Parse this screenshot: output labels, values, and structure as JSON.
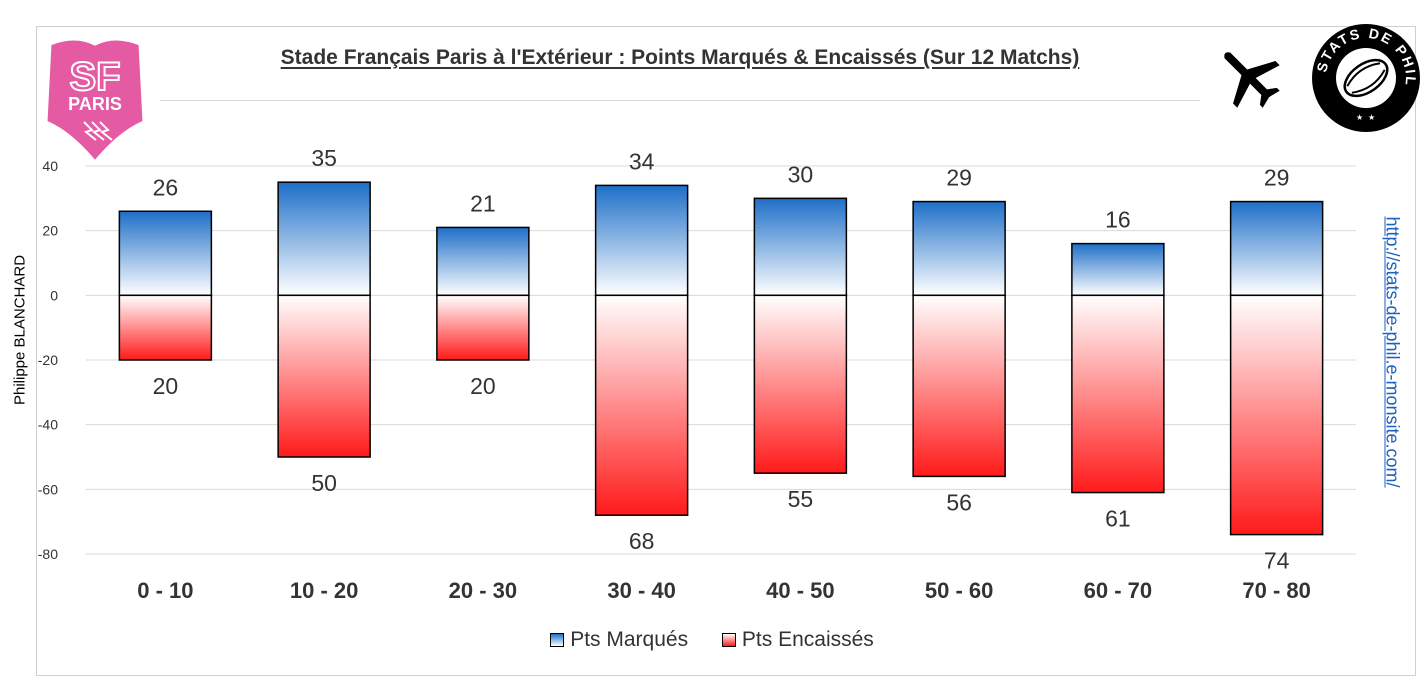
{
  "title": "Stade Français Paris à l'Extérieur : Points Marqués & Encaissés (Sur 12 Matchs)",
  "author": "Philippe BLANCHARD",
  "url": "http://stats-de-phil.e-monsite.com/",
  "logo_left": {
    "line1": "SF",
    "line2": "PARIS"
  },
  "logo_right": {
    "text": "STATS DE PHIL",
    "icon": "rugby-ball-icon"
  },
  "plane_icon": "airplane-icon",
  "colors": {
    "blue": "#1e6fc8",
    "red": "#ff1a1a",
    "logo_pink": "#e45aa3"
  },
  "chart_data": {
    "type": "bar",
    "categories": [
      "0 - 10",
      "10 - 20",
      "20 - 30",
      "30 - 40",
      "40 - 50",
      "50 - 60",
      "60 - 70",
      "70 - 80"
    ],
    "series": [
      {
        "name": "Pts Marqués",
        "values": [
          26,
          35,
          21,
          34,
          30,
          29,
          16,
          29
        ],
        "labels": [
          "26",
          "35",
          "21",
          "34",
          "30",
          "29",
          "16",
          "29"
        ]
      },
      {
        "name": "Pts Encaissés",
        "values": [
          -20,
          -50,
          -20,
          -68,
          -55,
          -56,
          -61,
          -74
        ],
        "labels": [
          "20",
          "50",
          "20",
          "68",
          "55",
          "56",
          "61",
          "74"
        ]
      }
    ],
    "yticks": [
      40,
      20,
      0,
      -20,
      -40,
      -60,
      -80
    ],
    "ylim": [
      -80,
      40
    ],
    "grid": true,
    "legend": "bottom"
  }
}
